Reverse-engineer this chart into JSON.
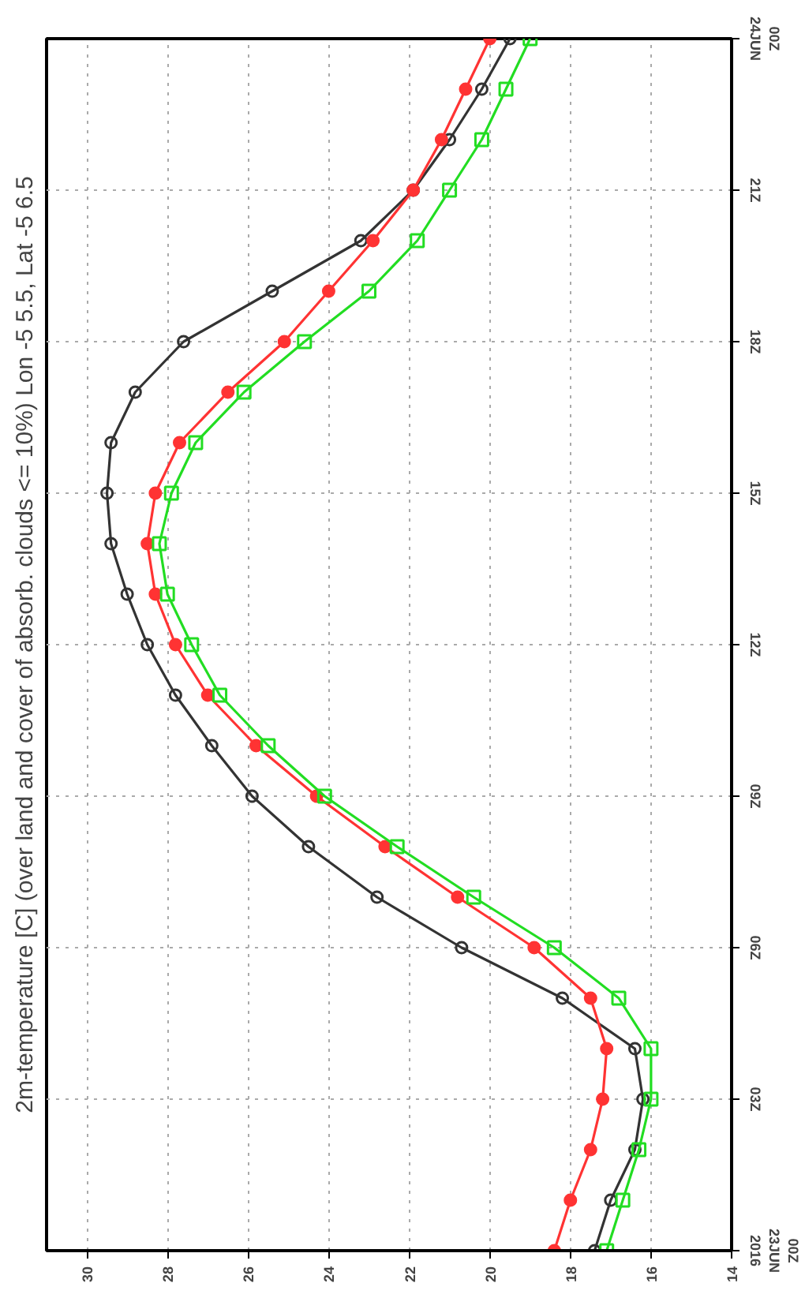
{
  "chart_data": {
    "type": "line",
    "title": "2m-temperature [C] (over land and cover of absorb. clouds <= 10%) Lon -5 5.5, Lat -5 6.5",
    "xlim": [
      31,
      14
    ],
    "xticks": [
      30,
      28,
      26,
      24,
      22,
      20,
      18,
      16,
      14
    ],
    "ylim": [
      0,
      24
    ],
    "yticks": [
      {
        "value": 0,
        "label": "00Z\n23JUN\n2016"
      },
      {
        "value": 3,
        "label": "03Z"
      },
      {
        "value": 6,
        "label": "06Z"
      },
      {
        "value": 9,
        "label": "09Z"
      },
      {
        "value": 12,
        "label": "12Z"
      },
      {
        "value": 15,
        "label": "15Z"
      },
      {
        "value": 18,
        "label": "18Z"
      },
      {
        "value": 21,
        "label": "21Z"
      },
      {
        "value": 24,
        "label": "00Z\n24JUN"
      }
    ],
    "grid": true,
    "line_style": "solid",
    "series": [
      {
        "color": "#333333",
        "marker": "circle_open",
        "x": [
          17.4,
          17.0,
          16.4,
          16.2,
          16.4,
          18.2,
          20.7,
          22.8,
          24.5,
          25.9,
          26.9,
          27.8,
          28.5,
          29.0,
          29.4,
          29.5,
          29.4,
          28.8,
          27.6,
          25.4,
          23.2,
          21.9,
          21.0,
          20.2,
          19.5
        ],
        "values": [
          0,
          1,
          2,
          3,
          4,
          5,
          6,
          7,
          8,
          9,
          10,
          11,
          12,
          13,
          14,
          15,
          16,
          17,
          18,
          19,
          20,
          21,
          22,
          23,
          24
        ]
      },
      {
        "color": "#ff3333",
        "marker": "circle",
        "x": [
          18.4,
          18.0,
          17.5,
          17.2,
          17.1,
          17.5,
          18.9,
          20.8,
          22.6,
          24.3,
          25.8,
          27.0,
          27.8,
          28.3,
          28.5,
          28.3,
          27.7,
          26.5,
          25.1,
          24.0,
          22.9,
          21.9,
          21.2,
          20.6,
          20.0
        ],
        "values": [
          0,
          1,
          2,
          3,
          4,
          5,
          6,
          7,
          8,
          9,
          10,
          11,
          12,
          13,
          14,
          15,
          16,
          17,
          18,
          19,
          20,
          21,
          22,
          23,
          24
        ]
      },
      {
        "color": "#22dd22",
        "marker": "square_open",
        "x": [
          17.1,
          16.7,
          16.3,
          16.0,
          16.0,
          16.8,
          18.4,
          20.4,
          22.3,
          24.1,
          25.5,
          26.7,
          27.4,
          28.0,
          28.2,
          27.9,
          27.3,
          26.1,
          24.6,
          23.0,
          21.8,
          21.0,
          20.2,
          19.6,
          19.0
        ],
        "values": [
          0,
          1,
          2,
          3,
          4,
          5,
          6,
          7,
          8,
          9,
          10,
          11,
          12,
          13,
          14,
          15,
          16,
          17,
          18,
          19,
          20,
          21,
          22,
          23,
          24
        ]
      }
    ]
  }
}
